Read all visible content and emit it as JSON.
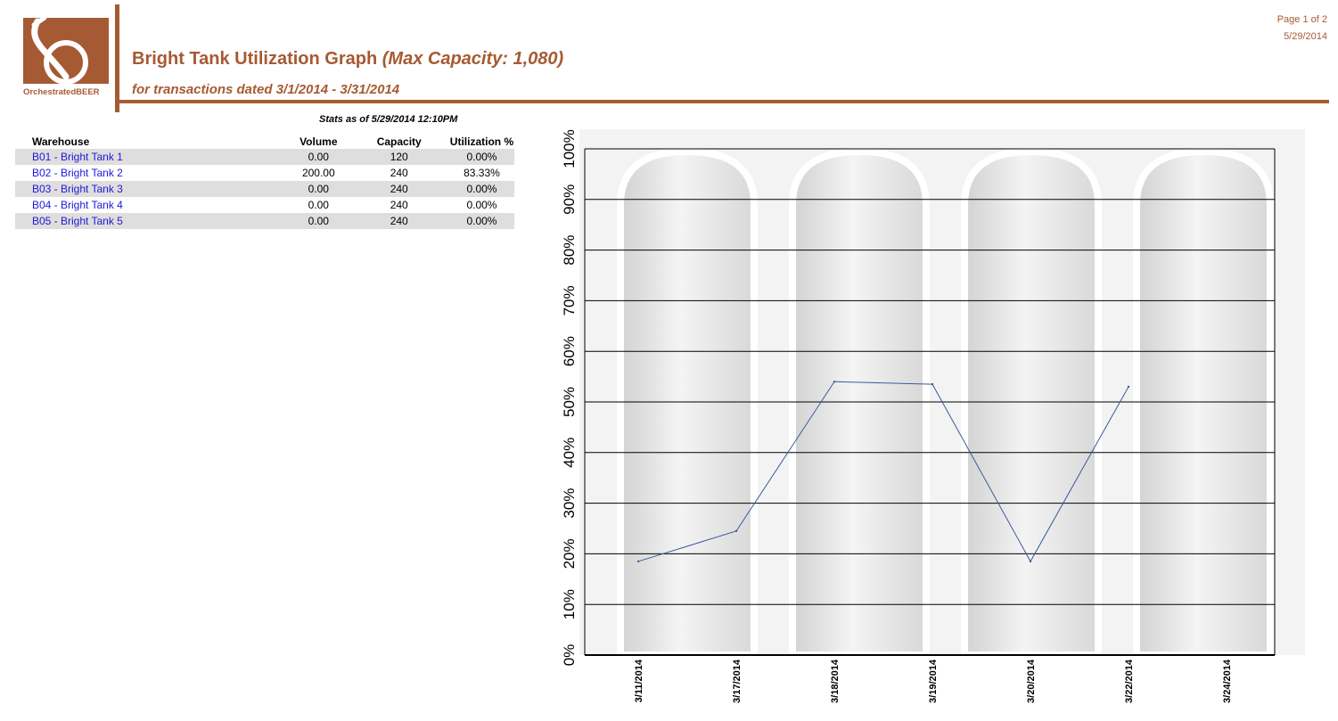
{
  "header": {
    "logo_text": "OrchestratedBEER",
    "title": "Bright Tank Utilization Graph",
    "title_capacity": "(Max Capacity: 1,080)",
    "subtitle": "for transactions dated 3/1/2014 - 3/31/2014",
    "page_label": "Page 1 of 2",
    "report_date": "5/29/2014"
  },
  "stats": {
    "as_of": "Stats as of 5/29/2014  12:10PM",
    "columns": [
      "Warehouse",
      "Volume",
      "Capacity",
      "Utilization %"
    ],
    "rows": [
      {
        "warehouse": "B01 - Bright Tank 1",
        "volume": "0.00",
        "capacity": "120",
        "utilization": "0.00%"
      },
      {
        "warehouse": "B02 - Bright Tank 2",
        "volume": "200.00",
        "capacity": "240",
        "utilization": "83.33%"
      },
      {
        "warehouse": "B03 - Bright Tank 3",
        "volume": "0.00",
        "capacity": "240",
        "utilization": "0.00%"
      },
      {
        "warehouse": "B04 - Bright Tank 4",
        "volume": "0.00",
        "capacity": "240",
        "utilization": "0.00%"
      },
      {
        "warehouse": "B05 - Bright Tank 5",
        "volume": "0.00",
        "capacity": "240",
        "utilization": "0.00%"
      }
    ]
  },
  "colors": {
    "brand": "#a65a33",
    "link": "#1a1adb",
    "row_shade": "#e0dedd",
    "line": "#3a5a9a"
  },
  "chart_data": {
    "type": "line",
    "x": [
      "3/11/2014",
      "3/17/2014",
      "3/18/2014",
      "3/19/2014",
      "3/20/2014",
      "3/22/2014",
      "3/24/2014"
    ],
    "series": [
      {
        "values": [
          18.5,
          24.5,
          54,
          53.5,
          18.5,
          53,
          null
        ]
      }
    ],
    "ylim": [
      0,
      100
    ],
    "y_ticks": [
      0,
      10,
      20,
      30,
      40,
      50,
      60,
      70,
      80,
      90,
      100
    ],
    "y_tick_suffix": "%",
    "grid": true
  }
}
